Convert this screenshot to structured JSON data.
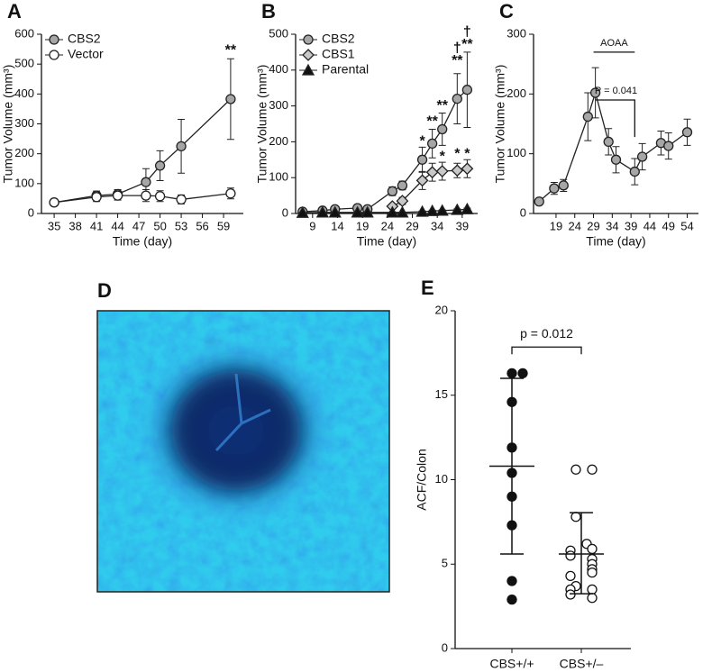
{
  "chart_data": [
    {
      "type": "line",
      "panel": "A",
      "xlabel": "Time (day)",
      "ylabel": "Tumor Volume (mm³)",
      "xlim": [
        33.2,
        61.8
      ],
      "ylim": [
        0,
        600
      ],
      "xticks": [
        35,
        38,
        41,
        44,
        47,
        50,
        53,
        56,
        59
      ],
      "yticks": [
        0,
        100,
        200,
        300,
        400,
        500,
        600
      ],
      "legend": "upper left",
      "series": [
        {
          "name": "CBS2",
          "color": "#a6a6a6",
          "marker": "circle",
          "x": [
            35,
            41,
            44,
            48,
            50,
            53,
            60
          ],
          "values": [
            37,
            60,
            65,
            105,
            160,
            225,
            383
          ],
          "errors": [
            5,
            15,
            15,
            45,
            50,
            90,
            135
          ]
        },
        {
          "name": "Vector",
          "color": "#ffffff",
          "marker": "circle",
          "x": [
            35,
            41,
            44,
            48,
            50,
            53,
            60
          ],
          "values": [
            37,
            55,
            60,
            60,
            58,
            47,
            67
          ],
          "errors": [
            5,
            15,
            15,
            20,
            18,
            15,
            18
          ]
        }
      ],
      "annotations": [
        {
          "text": "**",
          "x": 60,
          "y": 545
        }
      ]
    },
    {
      "type": "line",
      "panel": "B",
      "xlabel": "Time (day)",
      "ylabel": "Tumor Volume (mm³)",
      "xlim": [
        5.6,
        42.1
      ],
      "ylim": [
        0,
        500
      ],
      "xticks": [
        9,
        14,
        19,
        24,
        29,
        34,
        39
      ],
      "yticks": [
        0,
        100,
        200,
        300,
        400,
        500
      ],
      "legend": "upper left",
      "series": [
        {
          "name": "CBS2",
          "color": "#a6a6a6",
          "marker": "circle",
          "x": [
            7,
            11,
            13.5,
            18,
            20,
            25,
            27,
            31,
            33,
            35,
            38,
            40
          ],
          "values": [
            5,
            8,
            12,
            15,
            12,
            62,
            78,
            150,
            195,
            235,
            320,
            345
          ],
          "errors": [
            3,
            3,
            3,
            5,
            5,
            12,
            12,
            35,
            40,
            45,
            70,
            105
          ]
        },
        {
          "name": "CBS1",
          "color": "#c8c8c8",
          "marker": "diamond",
          "x": [
            25,
            27,
            31,
            33,
            35,
            38,
            40
          ],
          "values": [
            20,
            35,
            92,
            115,
            118,
            120,
            125
          ],
          "errors": [
            5,
            10,
            25,
            25,
            25,
            20,
            25
          ]
        },
        {
          "name": "Parental",
          "color": "#111111",
          "marker": "triangle",
          "x": [
            7,
            11,
            13.5,
            18,
            20,
            25,
            27,
            31,
            33,
            35,
            38,
            40
          ],
          "values": [
            2,
            3,
            3,
            3,
            3,
            3,
            3,
            5,
            7,
            8,
            10,
            12
          ],
          "errors": [
            1,
            1,
            1,
            1,
            1,
            1,
            1,
            2,
            2,
            2,
            3,
            3
          ]
        }
      ],
      "annotations": [
        {
          "text": "*",
          "x": 31,
          "y": 200
        },
        {
          "text": "**",
          "x": 33,
          "y": 255
        },
        {
          "text": "**",
          "x": 35,
          "y": 300
        },
        {
          "text": "**",
          "x": 38,
          "y": 425
        },
        {
          "text": "†",
          "x": 38,
          "y": 460
        },
        {
          "text": "**",
          "x": 40,
          "y": 470
        },
        {
          "text": "†",
          "x": 40,
          "y": 505
        },
        {
          "text": "*",
          "x": 35,
          "y": 158
        },
        {
          "text": "*",
          "x": 38,
          "y": 165
        },
        {
          "text": "*",
          "x": 40,
          "y": 165
        }
      ]
    },
    {
      "type": "line",
      "panel": "C",
      "xlabel": "Time (day)",
      "ylabel": "Tumor Volume (mm³)",
      "xlim": [
        13,
        57
      ],
      "ylim": [
        0,
        300
      ],
      "xticks": [
        19,
        24,
        29,
        34,
        39,
        44,
        49,
        54
      ],
      "yticks": [
        0,
        100,
        200,
        300
      ],
      "series": [
        {
          "color": "#a6a6a6",
          "marker": "circle",
          "x": [
            14.5,
            18.5,
            21,
            27.5,
            29.5,
            33,
            35,
            40,
            42,
            47,
            49,
            54
          ],
          "values": [
            20,
            42,
            47,
            162,
            202,
            120,
            90,
            70,
            95,
            118,
            113,
            136
          ],
          "errors": [
            5,
            10,
            10,
            40,
            42,
            22,
            22,
            22,
            22,
            20,
            22,
            22
          ]
        }
      ],
      "annotations": [
        {
          "text": "AOAA",
          "x": 34.5,
          "y": 285
        },
        {
          "text": "P = 0.041",
          "x": 35,
          "y": 205
        }
      ]
    },
    {
      "type": "dot",
      "panel": "E",
      "ylabel": "ACF/Colon",
      "categories": [
        "CBS+/+",
        "CBS+/–"
      ],
      "ylim": [
        0,
        20
      ],
      "yticks": [
        0,
        5,
        10,
        15,
        20
      ],
      "groups": [
        {
          "color": "#111111",
          "values": [
            16.3,
            16.3,
            14.6,
            11.9,
            10.4,
            9.0,
            7.3,
            4.0,
            2.9
          ]
        },
        {
          "color": "#ffffff",
          "values": [
            10.6,
            10.6,
            7.8,
            6.2,
            5.9,
            5.8,
            5.5,
            5.3,
            5.0,
            4.7,
            4.5,
            4.3,
            3.7,
            3.5,
            3.5,
            3.2,
            3.0
          ]
        }
      ],
      "mean": [
        10.8,
        5.6
      ],
      "upper": [
        16.0,
        8.05
      ],
      "lower": [
        5.6,
        3.25
      ],
      "annotations": [
        {
          "text": "p = 0.012",
          "y": 18.6
        }
      ]
    }
  ],
  "panel_d": {
    "label": "D"
  }
}
